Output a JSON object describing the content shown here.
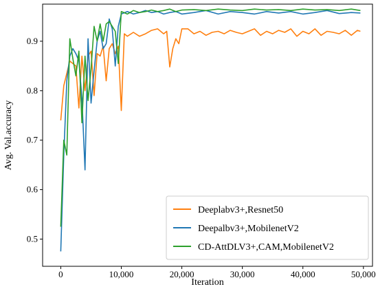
{
  "chart_data": {
    "type": "line",
    "title": "",
    "xlabel": "Iteration",
    "ylabel": "Avg. Val.accuracy",
    "xlim": [
      -3000,
      51500
    ],
    "ylim": [
      0.445,
      0.975
    ],
    "x_ticks": [
      0,
      10000,
      20000,
      30000,
      40000,
      50000
    ],
    "x_tick_labels": [
      "0",
      "10,000",
      "20,000",
      "30,000",
      "40,000",
      "50,000"
    ],
    "y_ticks": [
      0.5,
      0.6,
      0.7,
      0.8,
      0.9
    ],
    "y_tick_labels": [
      "0.5",
      "0.6",
      "0.7",
      "0.8",
      "0.9"
    ],
    "grid": false,
    "legend_position": "lower-right",
    "series": [
      {
        "name": "Deeplabv3+,Resnet50",
        "color": "#ff7f0e",
        "x": [
          0,
          500,
          1500,
          2500,
          3000,
          3500,
          4000,
          4500,
          5000,
          5500,
          6000,
          6500,
          7000,
          7500,
          8000,
          8500,
          9000,
          9500,
          10000,
          10500,
          11000,
          12000,
          13000,
          14000,
          15000,
          16000,
          17000,
          17500,
          18000,
          18500,
          19000,
          19500,
          20000,
          21000,
          22000,
          23000,
          24000,
          25000,
          26000,
          27000,
          28000,
          29000,
          30000,
          31000,
          32000,
          33000,
          34000,
          35000,
          36000,
          37000,
          38000,
          39000,
          40000,
          41000,
          42000,
          43000,
          44000,
          45000,
          46000,
          47000,
          48000,
          49000,
          49500
        ],
        "y": [
          0.74,
          0.81,
          0.86,
          0.85,
          0.765,
          0.87,
          0.8,
          0.87,
          0.88,
          0.79,
          0.875,
          0.87,
          0.89,
          0.82,
          0.885,
          0.895,
          0.875,
          0.89,
          0.76,
          0.915,
          0.91,
          0.918,
          0.91,
          0.915,
          0.922,
          0.925,
          0.915,
          0.92,
          0.848,
          0.885,
          0.905,
          0.895,
          0.925,
          0.925,
          0.915,
          0.92,
          0.912,
          0.918,
          0.92,
          0.915,
          0.922,
          0.918,
          0.915,
          0.92,
          0.925,
          0.912,
          0.92,
          0.915,
          0.922,
          0.918,
          0.925,
          0.91,
          0.92,
          0.915,
          0.925,
          0.912,
          0.92,
          0.918,
          0.915,
          0.922,
          0.912,
          0.922,
          0.92
        ]
      },
      {
        "name": "Deepalbv3+,MobilenetV2",
        "color": "#1f77b4",
        "x": [
          0,
          500,
          1000,
          1500,
          2000,
          2500,
          3000,
          3500,
          4000,
          4500,
          5000,
          5500,
          6000,
          6500,
          7000,
          7500,
          8000,
          8500,
          9000,
          9500,
          10000,
          11000,
          12000,
          13000,
          14000,
          15000,
          16000,
          17000,
          18000,
          19000,
          20000,
          22000,
          24000,
          26000,
          28000,
          30000,
          32000,
          34000,
          36000,
          38000,
          40000,
          42000,
          44000,
          46000,
          48000,
          49500
        ],
        "y": [
          0.475,
          0.67,
          0.82,
          0.87,
          0.885,
          0.875,
          0.86,
          0.785,
          0.64,
          0.905,
          0.775,
          0.84,
          0.9,
          0.92,
          0.885,
          0.895,
          0.945,
          0.925,
          0.85,
          0.93,
          0.955,
          0.96,
          0.955,
          0.958,
          0.962,
          0.958,
          0.96,
          0.955,
          0.958,
          0.96,
          0.955,
          0.958,
          0.962,
          0.955,
          0.96,
          0.958,
          0.955,
          0.96,
          0.957,
          0.96,
          0.955,
          0.958,
          0.962,
          0.956,
          0.958,
          0.957
        ]
      },
      {
        "name": "CD-AttDLV3+,CAM,MobilenetV2",
        "color": "#2ca02c",
        "x": [
          0,
          500,
          1000,
          1500,
          2000,
          2500,
          3000,
          3500,
          4000,
          4500,
          5000,
          5500,
          6000,
          6500,
          7000,
          7500,
          8000,
          8500,
          9000,
          9500,
          10000,
          11000,
          12000,
          13000,
          14000,
          15000,
          16000,
          17000,
          18000,
          19000,
          20000,
          22000,
          24000,
          26000,
          28000,
          30000,
          32000,
          34000,
          36000,
          38000,
          40000,
          42000,
          44000,
          46000,
          48000,
          49500
        ],
        "y": [
          0.525,
          0.7,
          0.67,
          0.905,
          0.865,
          0.83,
          0.88,
          0.735,
          0.87,
          0.78,
          0.845,
          0.93,
          0.9,
          0.935,
          0.9,
          0.935,
          0.94,
          0.93,
          0.92,
          0.855,
          0.96,
          0.955,
          0.962,
          0.958,
          0.96,
          0.963,
          0.96,
          0.962,
          0.965,
          0.96,
          0.963,
          0.964,
          0.962,
          0.965,
          0.963,
          0.962,
          0.965,
          0.963,
          0.964,
          0.962,
          0.965,
          0.963,
          0.964,
          0.962,
          0.965,
          0.962
        ]
      }
    ]
  }
}
